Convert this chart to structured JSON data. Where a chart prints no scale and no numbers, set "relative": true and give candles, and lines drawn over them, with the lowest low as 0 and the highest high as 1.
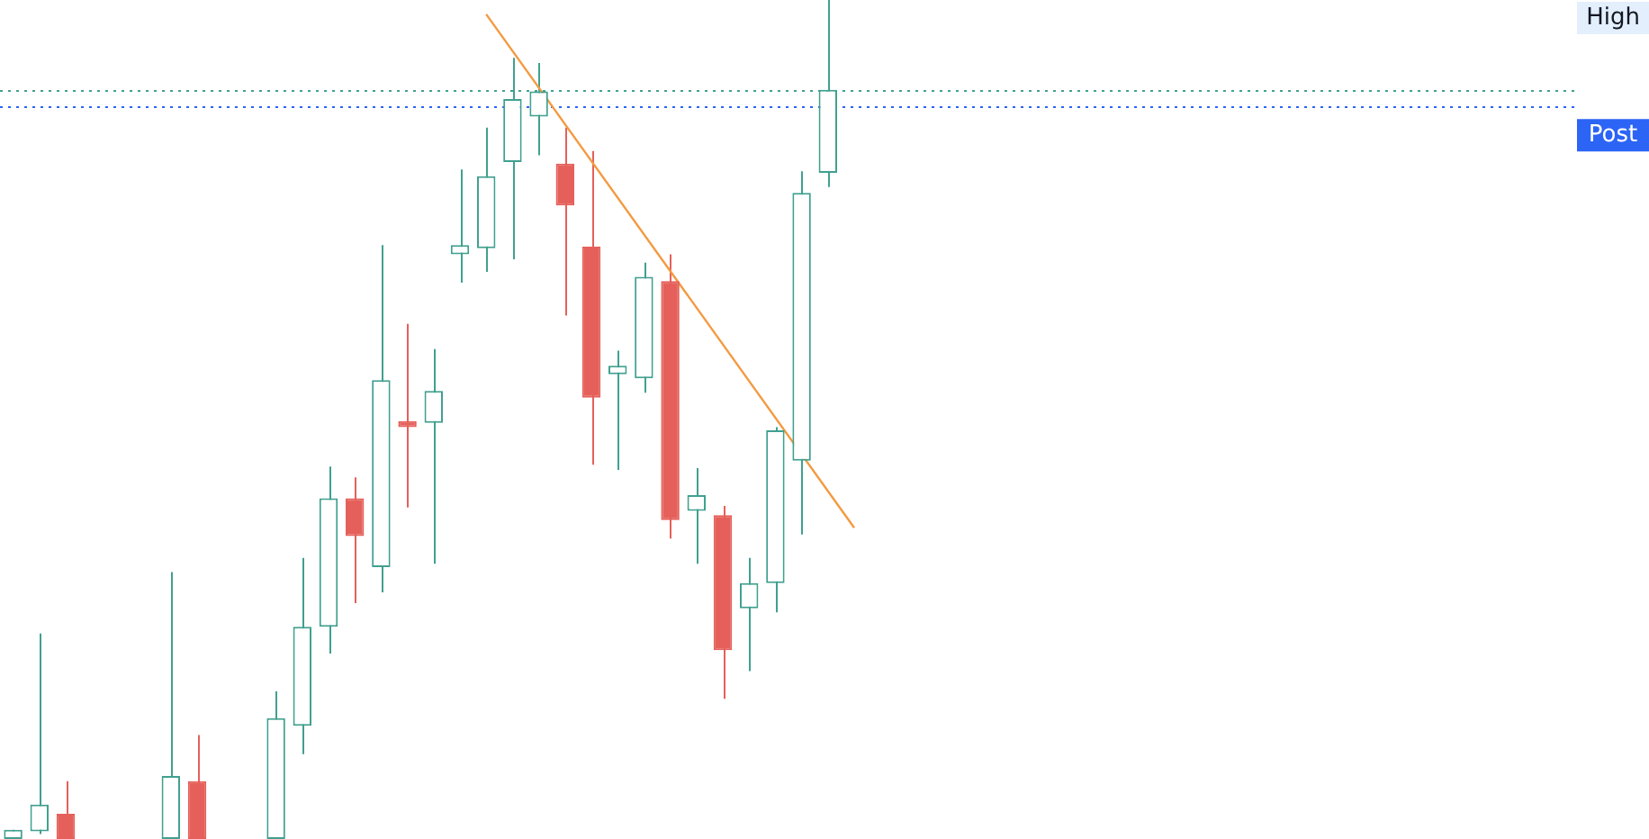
{
  "chart_data": {
    "type": "candlestick",
    "relative": true,
    "categories": [
      null,
      null,
      null,
      null,
      null,
      null,
      null,
      null,
      null,
      null,
      null,
      null,
      null,
      null,
      null,
      null,
      null,
      null,
      null,
      null,
      null,
      null,
      null,
      null,
      null,
      null,
      null,
      null,
      null,
      null,
      null,
      null,
      null,
      null,
      null,
      null,
      null,
      null,
      null,
      null,
      null,
      null,
      null,
      null,
      null,
      null,
      null,
      null,
      null,
      null,
      null,
      null,
      null,
      null,
      null,
      null,
      null,
      null,
      null,
      null
    ],
    "ohlc": [
      [
        0,
        0.011,
        0,
        0.011
      ],
      [
        0.009,
        0.245,
        0.006,
        0.041
      ],
      [
        0.03,
        0.069,
        0,
        0
      ],
      null,
      null,
      null,
      [
        0,
        0.318,
        0,
        0.075
      ],
      [
        0.069,
        0.124,
        0,
        0
      ],
      null,
      null,
      [
        0,
        0.176,
        0,
        0.144
      ],
      [
        0.135,
        0.335,
        0.101,
        0.253
      ],
      [
        0.253,
        0.444,
        0.221,
        0.406
      ],
      [
        0.406,
        0.431,
        0.281,
        0.361
      ],
      [
        0.324,
        0.708,
        0.294,
        0.547
      ],
      [
        0.498,
        0.614,
        0.395,
        0.491
      ],
      [
        0.496,
        0.584,
        0.328,
        0.534
      ],
      [
        0.697,
        0.798,
        0.663,
        0.708
      ],
      [
        0.704,
        0.848,
        0.676,
        0.79
      ],
      [
        0.807,
        0.931,
        0.691,
        0.882
      ],
      [
        0.861,
        0.925,
        0.815,
        0.891
      ],
      [
        0.805,
        0.848,
        0.624,
        0.755
      ],
      [
        0.706,
        0.82,
        0.446,
        0.526
      ],
      [
        0.554,
        0.582,
        0.44,
        0.564
      ],
      [
        0.549,
        0.687,
        0.532,
        0.67
      ],
      [
        0.665,
        0.697,
        0.358,
        0.38
      ],
      [
        0.391,
        0.442,
        0.328,
        0.41
      ],
      [
        0.386,
        0.397,
        0.167,
        0.225
      ],
      [
        0.275,
        0.335,
        0.2,
        0.305
      ],
      [
        0.305,
        0.491,
        0.27,
        0.487
      ],
      [
        0.451,
        0.796,
        0.363,
        0.77
      ],
      [
        0.794,
        1,
        0.777,
        0.893
      ],
      null,
      null,
      null,
      null,
      null,
      null,
      null,
      null,
      null,
      null,
      null,
      null,
      null,
      null,
      null,
      null,
      null,
      null,
      null,
      null,
      null,
      null,
      null,
      null,
      null,
      null,
      null,
      null
    ],
    "colors": [
      "#40a08f",
      "#40a08f",
      "#e5605a",
      null,
      null,
      null,
      "#40a08f",
      "#e5605a",
      null,
      null,
      "#40a08f",
      "#40a08f",
      "#40a08f",
      "#e5605a",
      "#40a08f",
      "#e5605a",
      "#40a08f",
      "#40a08f",
      "#40a08f",
      "#40a08f",
      "#40a08f",
      "#e5605a",
      "#e5605a",
      "#40a08f",
      "#40a08f",
      "#e5605a",
      "#40a08f",
      "#e5605a",
      "#40a08f",
      "#40a08f",
      "#40a08f",
      "#40a08f",
      null,
      null,
      null,
      null,
      null,
      null,
      null,
      null,
      null,
      null,
      null,
      null,
      null,
      null,
      null,
      null,
      null,
      null,
      null,
      null,
      null,
      null,
      null,
      null,
      null,
      null,
      null,
      null
    ],
    "series": [
      {
        "type": "line",
        "color": "#f39a40",
        "values": [
          null,
          null,
          null,
          null,
          null,
          null,
          null,
          null,
          null,
          null,
          null,
          null,
          null,
          null,
          null,
          null,
          null,
          null,
          0.983,
          null,
          null,
          null,
          null,
          null,
          null,
          null,
          null,
          null,
          null,
          null,
          null,
          null,
          0.371,
          null,
          null,
          null,
          null,
          null,
          null,
          null,
          null,
          null,
          null,
          null,
          null,
          null,
          null,
          null,
          null,
          null,
          null,
          null,
          null,
          null,
          null,
          null,
          null,
          null,
          null,
          null
        ]
      }
    ],
    "ref_lines": [
      {
        "axis": "y",
        "value": 0.893,
        "label": null,
        "color": "#3fa38f",
        "line_style": "dotted"
      },
      {
        "axis": "y",
        "value": 0.873,
        "label": "Post",
        "color": "#2c64f6",
        "line_style": "dotted"
      }
    ],
    "annotations": [
      "High"
    ]
  }
}
